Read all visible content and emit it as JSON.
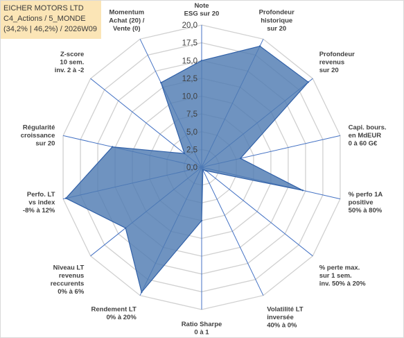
{
  "header": {
    "title": "EICHER MOTORS LTD",
    "line2": "C4_Actions / 5_MONDE",
    "line3": "(34,2% | 46,2%) / 2026W09"
  },
  "colors": {
    "fill": "#4f7bb2",
    "outline": "#3060a8",
    "grid": "#d0d0d0",
    "spoke": "#4472c4"
  },
  "chart_data": {
    "type": "radar",
    "ylim": [
      0,
      20
    ],
    "ticks": [
      "0,0",
      "2,5",
      "5,0",
      "7,5",
      "10,0",
      "12,5",
      "15,0",
      "17,5",
      "20,0"
    ],
    "categories": [
      [
        "Note",
        "ESG sur 20"
      ],
      [
        "Profondeur",
        "historique",
        "sur 20"
      ],
      [
        "Profondeur",
        "revenus",
        "sur 20"
      ],
      [
        "Capi. bours.",
        "en MdEUR",
        "0 à 60 G€"
      ],
      [
        "% perfo 1A",
        "positive",
        "50% à 80%"
      ],
      [
        "% perte max.",
        "sur 1 sem.",
        "inv. 50% à 20%"
      ],
      [
        "Volatilité LT",
        "inversée",
        "40% à 0%"
      ],
      [
        "Ratio Sharpe",
        "0 à 1"
      ],
      [
        "Rendement LT",
        "0% à 20%"
      ],
      [
        "Niveau LT",
        "revenus",
        "reccurents",
        "0% à 6%"
      ],
      [
        "Perfo. LT",
        "vs index",
        "-8% à 12%"
      ],
      [
        "Régularité",
        "croissance",
        "sur 20"
      ],
      [
        "Z-score",
        "10 sem.",
        "inv. 2 à -2"
      ],
      [
        "Momentum",
        "Achat (20) /",
        "Vente (0)"
      ]
    ],
    "values": [
      15.0,
      18.9,
      19.2,
      5.6,
      14.6,
      0.8,
      0.4,
      7.5,
      19.5,
      13.7,
      19.6,
      12.9,
      3.1,
      13.2
    ]
  }
}
